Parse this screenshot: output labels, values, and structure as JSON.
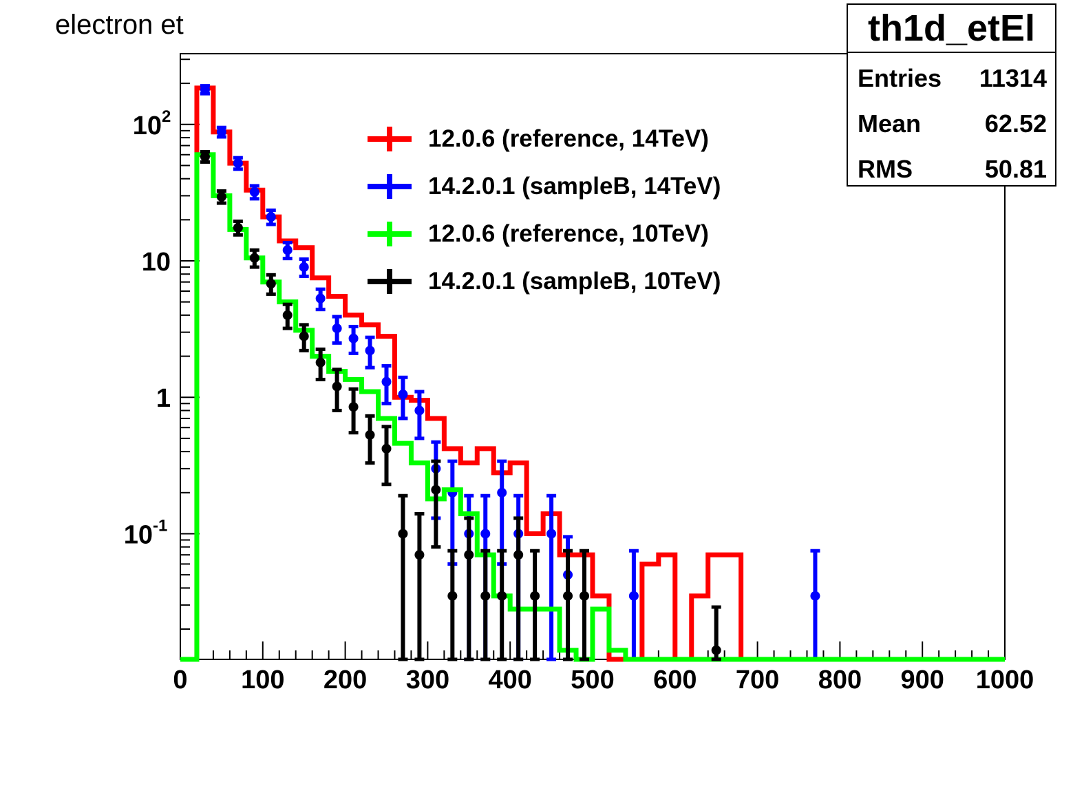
{
  "chart_data": {
    "type": "histogram",
    "title": "electron et",
    "xlabel": "",
    "ylabel": "",
    "xlim": [
      0,
      1000
    ],
    "ylim": [
      0.012,
      330
    ],
    "ylog": true,
    "bin_width": 20,
    "x_ticks": [
      "0",
      "100",
      "200",
      "300",
      "400",
      "500",
      "600",
      "700",
      "800",
      "900",
      "1000"
    ],
    "y_ticks": [
      {
        "value": 100,
        "base": "10",
        "exp": "2"
      },
      {
        "value": 10,
        "base": "10",
        "exp": ""
      },
      {
        "value": 1,
        "base": "1",
        "exp": ""
      },
      {
        "value": 0.1,
        "base": "10",
        "exp": "-1"
      }
    ],
    "legend_position": "top-center",
    "series": [
      {
        "name": "12.0.6 (reference, 14TeV)",
        "color": "#ff0000",
        "style": "step",
        "bins": [
          {
            "x": 20,
            "y": 185
          },
          {
            "x": 40,
            "y": 88
          },
          {
            "x": 60,
            "y": 52
          },
          {
            "x": 80,
            "y": 33
          },
          {
            "x": 100,
            "y": 21
          },
          {
            "x": 120,
            "y": 14
          },
          {
            "x": 140,
            "y": 12.5
          },
          {
            "x": 160,
            "y": 7.5
          },
          {
            "x": 180,
            "y": 5.5
          },
          {
            "x": 200,
            "y": 4.0
          },
          {
            "x": 220,
            "y": 3.4
          },
          {
            "x": 240,
            "y": 2.8
          },
          {
            "x": 260,
            "y": 1.0
          },
          {
            "x": 280,
            "y": 0.95
          },
          {
            "x": 300,
            "y": 0.7
          },
          {
            "x": 320,
            "y": 0.42
          },
          {
            "x": 340,
            "y": 0.33
          },
          {
            "x": 360,
            "y": 0.42
          },
          {
            "x": 380,
            "y": 0.28
          },
          {
            "x": 400,
            "y": 0.33
          },
          {
            "x": 420,
            "y": 0.1
          },
          {
            "x": 440,
            "y": 0.14
          },
          {
            "x": 460,
            "y": 0.07
          },
          {
            "x": 480,
            "y": 0.07
          },
          {
            "x": 500,
            "y": 0.035
          },
          {
            "x": 560,
            "y": 0.06
          },
          {
            "x": 580,
            "y": 0.07
          },
          {
            "x": 620,
            "y": 0.035
          },
          {
            "x": 640,
            "y": 0.07
          },
          {
            "x": 660,
            "y": 0.07
          }
        ]
      },
      {
        "name": "14.2.0.1 (sampleB, 14TeV)",
        "color": "#0000ff",
        "style": "points",
        "points": [
          {
            "x": 30,
            "y": 180,
            "err": 12
          },
          {
            "x": 50,
            "y": 88,
            "err": 7
          },
          {
            "x": 70,
            "y": 52,
            "err": 5
          },
          {
            "x": 90,
            "y": 32,
            "err": 3.5
          },
          {
            "x": 110,
            "y": 21,
            "err": 2.5
          },
          {
            "x": 130,
            "y": 12,
            "err": 1.6
          },
          {
            "x": 150,
            "y": 9.0,
            "err": 1.3
          },
          {
            "x": 170,
            "y": 5.3,
            "err": 0.9
          },
          {
            "x": 190,
            "y": 3.2,
            "err": 0.7
          },
          {
            "x": 210,
            "y": 2.7,
            "err": 0.6
          },
          {
            "x": 230,
            "y": 2.2,
            "err": 0.55
          },
          {
            "x": 250,
            "y": 1.3,
            "err": 0.4
          },
          {
            "x": 270,
            "y": 1.05,
            "err": 0.35
          },
          {
            "x": 290,
            "y": 0.8,
            "err": 0.3
          },
          {
            "x": 310,
            "y": 0.3,
            "err": 0.17
          },
          {
            "x": 330,
            "y": 0.2,
            "err": 0.14
          },
          {
            "x": 350,
            "y": 0.1,
            "err": 0.09
          },
          {
            "x": 370,
            "y": 0.1,
            "err": 0.09
          },
          {
            "x": 390,
            "y": 0.2,
            "err": 0.14
          },
          {
            "x": 410,
            "y": 0.1,
            "err": 0.09
          },
          {
            "x": 450,
            "y": 0.1,
            "err": 0.09
          },
          {
            "x": 470,
            "y": 0.05,
            "err": 0.045
          },
          {
            "x": 550,
            "y": 0.035,
            "err": 0.04
          },
          {
            "x": 770,
            "y": 0.035,
            "err": 0.04
          }
        ]
      },
      {
        "name": "12.0.6 (reference, 10TeV)",
        "color": "#00ff00",
        "style": "step",
        "bins": [
          {
            "x": 20,
            "y": 60
          },
          {
            "x": 40,
            "y": 30
          },
          {
            "x": 60,
            "y": 17
          },
          {
            "x": 80,
            "y": 10.5
          },
          {
            "x": 100,
            "y": 7.0
          },
          {
            "x": 120,
            "y": 5.0
          },
          {
            "x": 140,
            "y": 3.1
          },
          {
            "x": 160,
            "y": 2.0
          },
          {
            "x": 180,
            "y": 1.55
          },
          {
            "x": 200,
            "y": 1.35
          },
          {
            "x": 220,
            "y": 1.1
          },
          {
            "x": 240,
            "y": 0.7
          },
          {
            "x": 260,
            "y": 0.46
          },
          {
            "x": 280,
            "y": 0.33
          },
          {
            "x": 300,
            "y": 0.18
          },
          {
            "x": 320,
            "y": 0.21
          },
          {
            "x": 340,
            "y": 0.14
          },
          {
            "x": 360,
            "y": 0.07
          },
          {
            "x": 380,
            "y": 0.035
          },
          {
            "x": 400,
            "y": 0.028
          },
          {
            "x": 420,
            "y": 0.028
          },
          {
            "x": 440,
            "y": 0.028
          },
          {
            "x": 460,
            "y": 0.014
          },
          {
            "x": 500,
            "y": 0.028
          },
          {
            "x": 520,
            "y": 0.014
          }
        ]
      },
      {
        "name": "14.2.0.1 (sampleB, 10TeV)",
        "color": "#000000",
        "style": "points",
        "points": [
          {
            "x": 30,
            "y": 58,
            "err": 5
          },
          {
            "x": 50,
            "y": 29.5,
            "err": 3
          },
          {
            "x": 70,
            "y": 17.5,
            "err": 2
          },
          {
            "x": 90,
            "y": 10.5,
            "err": 1.5
          },
          {
            "x": 110,
            "y": 6.8,
            "err": 1.1
          },
          {
            "x": 130,
            "y": 4.0,
            "err": 0.8
          },
          {
            "x": 150,
            "y": 2.8,
            "err": 0.6
          },
          {
            "x": 170,
            "y": 1.8,
            "err": 0.45
          },
          {
            "x": 190,
            "y": 1.2,
            "err": 0.4
          },
          {
            "x": 210,
            "y": 0.85,
            "err": 0.3
          },
          {
            "x": 230,
            "y": 0.53,
            "err": 0.2
          },
          {
            "x": 250,
            "y": 0.42,
            "err": 0.19
          },
          {
            "x": 270,
            "y": 0.1,
            "err": 0.09
          },
          {
            "x": 290,
            "y": 0.07,
            "err": 0.07
          },
          {
            "x": 310,
            "y": 0.21,
            "err": 0.13
          },
          {
            "x": 330,
            "y": 0.035,
            "err": 0.04
          },
          {
            "x": 350,
            "y": 0.07,
            "err": 0.06
          },
          {
            "x": 370,
            "y": 0.035,
            "err": 0.04
          },
          {
            "x": 390,
            "y": 0.035,
            "err": 0.04
          },
          {
            "x": 410,
            "y": 0.07,
            "err": 0.06
          },
          {
            "x": 430,
            "y": 0.035,
            "err": 0.04
          },
          {
            "x": 470,
            "y": 0.035,
            "err": 0.04
          },
          {
            "x": 490,
            "y": 0.035,
            "err": 0.04
          },
          {
            "x": 650,
            "y": 0.014,
            "err": 0.015
          }
        ]
      }
    ]
  },
  "stats": {
    "name": "th1d_etEl",
    "entries_label": "Entries",
    "entries": "11314",
    "mean_label": "Mean",
    "mean": "62.52",
    "rms_label": "RMS",
    "rms": "50.81"
  }
}
